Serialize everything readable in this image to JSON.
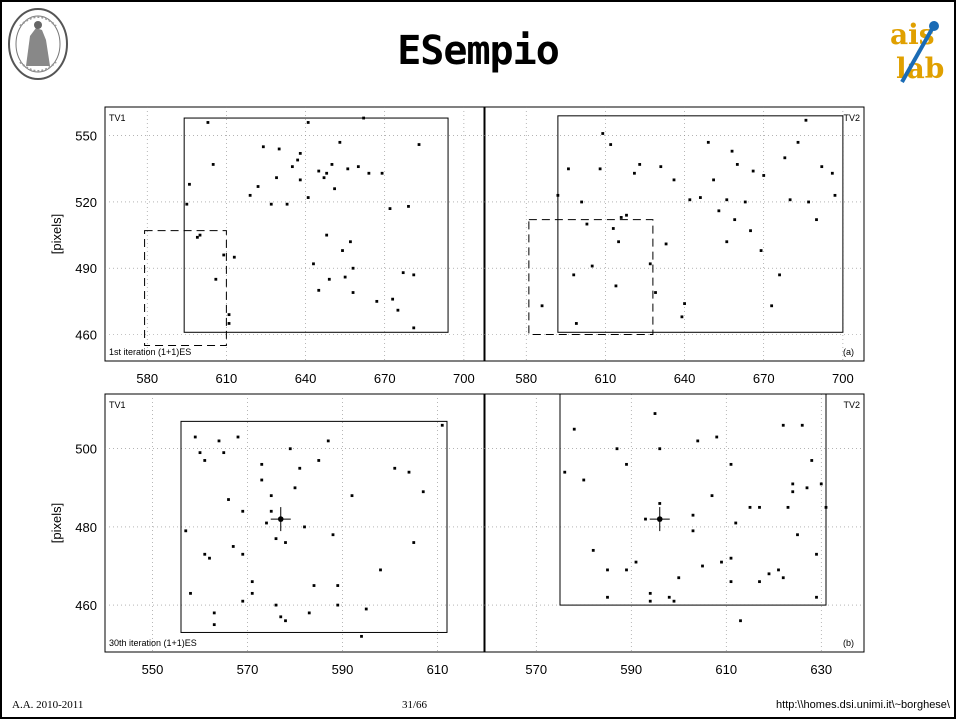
{
  "slide": {
    "title": "ESempio",
    "footer_year": "A.A. 2010-2011",
    "footer_page": "31/66",
    "footer_url": "http:\\\\homes.dsi.unimi.it\\~borghese\\",
    "logo_right_top": "ais",
    "logo_right_bottom": "lab"
  },
  "chart_data": [
    {
      "type": "scatter",
      "panel": "TV1",
      "ylabel": "[pixels]",
      "annotation": "1st iteration (1+1)ES",
      "xlim": [
        564,
        708
      ],
      "ylim": [
        448,
        563
      ],
      "xticks": [
        580,
        610,
        640,
        670,
        700
      ],
      "yticks": [
        460,
        490,
        520,
        550
      ],
      "grid": true,
      "rects": [
        {
          "x0": 594,
          "x1": 694,
          "y0": 461,
          "y1": 558,
          "style": "solid"
        },
        {
          "x0": 579,
          "x1": 610,
          "y0": 455,
          "y1": 507,
          "style": "dashed"
        }
      ],
      "points": [
        [
          596,
          528
        ],
        [
          595,
          519
        ],
        [
          599,
          504
        ],
        [
          603,
          556
        ],
        [
          605,
          537
        ],
        [
          600,
          505
        ],
        [
          606,
          485
        ],
        [
          611,
          469
        ],
        [
          611,
          465
        ],
        [
          613,
          495
        ],
        [
          619,
          523
        ],
        [
          622,
          527
        ],
        [
          624,
          545
        ],
        [
          627,
          519
        ],
        [
          629,
          531
        ],
        [
          630,
          544
        ],
        [
          633,
          519
        ],
        [
          635,
          536
        ],
        [
          637,
          539
        ],
        [
          638,
          530
        ],
        [
          638,
          542
        ],
        [
          641,
          556
        ],
        [
          641,
          522
        ],
        [
          643,
          492
        ],
        [
          645,
          534
        ],
        [
          645,
          480
        ],
        [
          647,
          531
        ],
        [
          648,
          533
        ],
        [
          648,
          505
        ],
        [
          649,
          485
        ],
        [
          650,
          537
        ],
        [
          651,
          526
        ],
        [
          653,
          547
        ],
        [
          654,
          498
        ],
        [
          656,
          535
        ],
        [
          655,
          486
        ],
        [
          657,
          502
        ],
        [
          658,
          490
        ],
        [
          658,
          479
        ],
        [
          660,
          536
        ],
        [
          662,
          558
        ],
        [
          664,
          533
        ],
        [
          667,
          475
        ],
        [
          669,
          533
        ],
        [
          672,
          517
        ],
        [
          673,
          476
        ],
        [
          675,
          471
        ],
        [
          677,
          488
        ],
        [
          679,
          518
        ],
        [
          681,
          463
        ],
        [
          681,
          487
        ],
        [
          683,
          546
        ],
        [
          609,
          496
        ]
      ]
    },
    {
      "type": "scatter",
      "panel": "TV2",
      "annotation": "(a)",
      "xlim": [
        564,
        708
      ],
      "ylim": [
        448,
        563
      ],
      "xticks": [
        580,
        610,
        640,
        670,
        700
      ],
      "yticks": [
        460,
        490,
        520,
        550
      ],
      "grid": true,
      "rects": [
        {
          "x0": 592,
          "x1": 700,
          "y0": 461,
          "y1": 559,
          "style": "solid"
        },
        {
          "x0": 581,
          "x1": 628,
          "y0": 460,
          "y1": 512,
          "style": "dashed"
        }
      ],
      "points": [
        [
          586,
          473
        ],
        [
          592,
          523
        ],
        [
          596,
          535
        ],
        [
          598,
          487
        ],
        [
          599,
          465
        ],
        [
          601,
          520
        ],
        [
          603,
          510
        ],
        [
          605,
          491
        ],
        [
          608,
          535
        ],
        [
          609,
          551
        ],
        [
          612,
          546
        ],
        [
          613,
          508
        ],
        [
          614,
          482
        ],
        [
          615,
          502
        ],
        [
          616,
          513
        ],
        [
          618,
          514
        ],
        [
          621,
          533
        ],
        [
          623,
          537
        ],
        [
          627,
          492
        ],
        [
          629,
          479
        ],
        [
          631,
          536
        ],
        [
          633,
          501
        ],
        [
          636,
          530
        ],
        [
          639,
          468
        ],
        [
          640,
          474
        ],
        [
          642,
          521
        ],
        [
          646,
          522
        ],
        [
          649,
          547
        ],
        [
          651,
          530
        ],
        [
          653,
          516
        ],
        [
          656,
          521
        ],
        [
          658,
          543
        ],
        [
          659,
          512
        ],
        [
          660,
          537
        ],
        [
          663,
          520
        ],
        [
          665,
          507
        ],
        [
          666,
          534
        ],
        [
          669,
          498
        ],
        [
          670,
          532
        ],
        [
          673,
          473
        ],
        [
          676,
          487
        ],
        [
          678,
          540
        ],
        [
          680,
          521
        ],
        [
          683,
          547
        ],
        [
          686,
          557
        ],
        [
          687,
          520
        ],
        [
          690,
          512
        ],
        [
          692,
          536
        ],
        [
          696,
          533
        ],
        [
          697,
          523
        ],
        [
          656,
          502
        ]
      ]
    },
    {
      "type": "scatter",
      "panel": "TV1",
      "ylabel": "[pixels]",
      "annotation": "30th iteration (1+1)ES",
      "xlim": [
        540,
        620
      ],
      "ylim": [
        448,
        514
      ],
      "xticks": [
        550,
        570,
        590,
        610
      ],
      "yticks": [
        460,
        480,
        500
      ],
      "grid": true,
      "rects": [
        {
          "x0": 556,
          "x1": 612,
          "y0": 453,
          "y1": 507,
          "style": "solid"
        }
      ],
      "centroid": [
        577,
        482
      ],
      "points": [
        [
          557,
          479
        ],
        [
          558,
          463
        ],
        [
          559,
          503
        ],
        [
          560,
          499
        ],
        [
          561,
          497
        ],
        [
          561,
          473
        ],
        [
          562,
          472
        ],
        [
          563,
          458
        ],
        [
          563,
          455
        ],
        [
          564,
          502
        ],
        [
          565,
          499
        ],
        [
          566,
          487
        ],
        [
          567,
          475
        ],
        [
          568,
          503
        ],
        [
          569,
          461
        ],
        [
          569,
          484
        ],
        [
          571,
          466
        ],
        [
          571,
          463
        ],
        [
          573,
          496
        ],
        [
          573,
          492
        ],
        [
          574,
          481
        ],
        [
          575,
          488
        ],
        [
          575,
          484
        ],
        [
          576,
          477
        ],
        [
          576,
          460
        ],
        [
          577,
          457
        ],
        [
          578,
          456
        ],
        [
          578,
          476
        ],
        [
          579,
          500
        ],
        [
          580,
          490
        ],
        [
          581,
          495
        ],
        [
          582,
          480
        ],
        [
          583,
          458
        ],
        [
          584,
          465
        ],
        [
          585,
          497
        ],
        [
          587,
          502
        ],
        [
          588,
          478
        ],
        [
          589,
          465
        ],
        [
          589,
          460
        ],
        [
          592,
          488
        ],
        [
          594,
          452
        ],
        [
          595,
          459
        ],
        [
          598,
          469
        ],
        [
          601,
          495
        ],
        [
          604,
          494
        ],
        [
          605,
          476
        ],
        [
          607,
          489
        ],
        [
          611,
          506
        ],
        [
          569,
          473
        ]
      ]
    },
    {
      "type": "scatter",
      "panel": "TV2",
      "annotation": "(b)",
      "xlim": [
        559,
        639
      ],
      "ylim": [
        448,
        514
      ],
      "xticks": [
        570,
        590,
        610,
        630
      ],
      "yticks": [
        460,
        480,
        500
      ],
      "grid": true,
      "rects": [
        {
          "x0": 575,
          "x1": 631,
          "y0": 460,
          "y1": 514,
          "style": "solid"
        }
      ],
      "centroid": [
        596,
        482
      ],
      "points": [
        [
          576,
          494
        ],
        [
          578,
          505
        ],
        [
          580,
          492
        ],
        [
          582,
          474
        ],
        [
          585,
          462
        ],
        [
          587,
          500
        ],
        [
          589,
          496
        ],
        [
          589,
          469
        ],
        [
          591,
          471
        ],
        [
          593,
          482
        ],
        [
          594,
          461
        ],
        [
          594,
          463
        ],
        [
          595,
          509
        ],
        [
          596,
          486
        ],
        [
          596,
          500
        ],
        [
          598,
          462
        ],
        [
          599,
          461
        ],
        [
          600,
          467
        ],
        [
          603,
          479
        ],
        [
          603,
          483
        ],
        [
          604,
          502
        ],
        [
          605,
          470
        ],
        [
          607,
          488
        ],
        [
          608,
          503
        ],
        [
          609,
          471
        ],
        [
          611,
          496
        ],
        [
          611,
          472
        ],
        [
          611,
          466
        ],
        [
          612,
          481
        ],
        [
          613,
          456
        ],
        [
          615,
          485
        ],
        [
          617,
          485
        ],
        [
          617,
          466
        ],
        [
          619,
          468
        ],
        [
          621,
          469
        ],
        [
          622,
          467
        ],
        [
          622,
          506
        ],
        [
          623,
          485
        ],
        [
          624,
          491
        ],
        [
          624,
          489
        ],
        [
          625,
          478
        ],
        [
          626,
          506
        ],
        [
          627,
          490
        ],
        [
          628,
          497
        ],
        [
          629,
          473
        ],
        [
          629,
          462
        ],
        [
          630,
          491
        ],
        [
          631,
          485
        ],
        [
          585,
          469
        ]
      ]
    }
  ]
}
